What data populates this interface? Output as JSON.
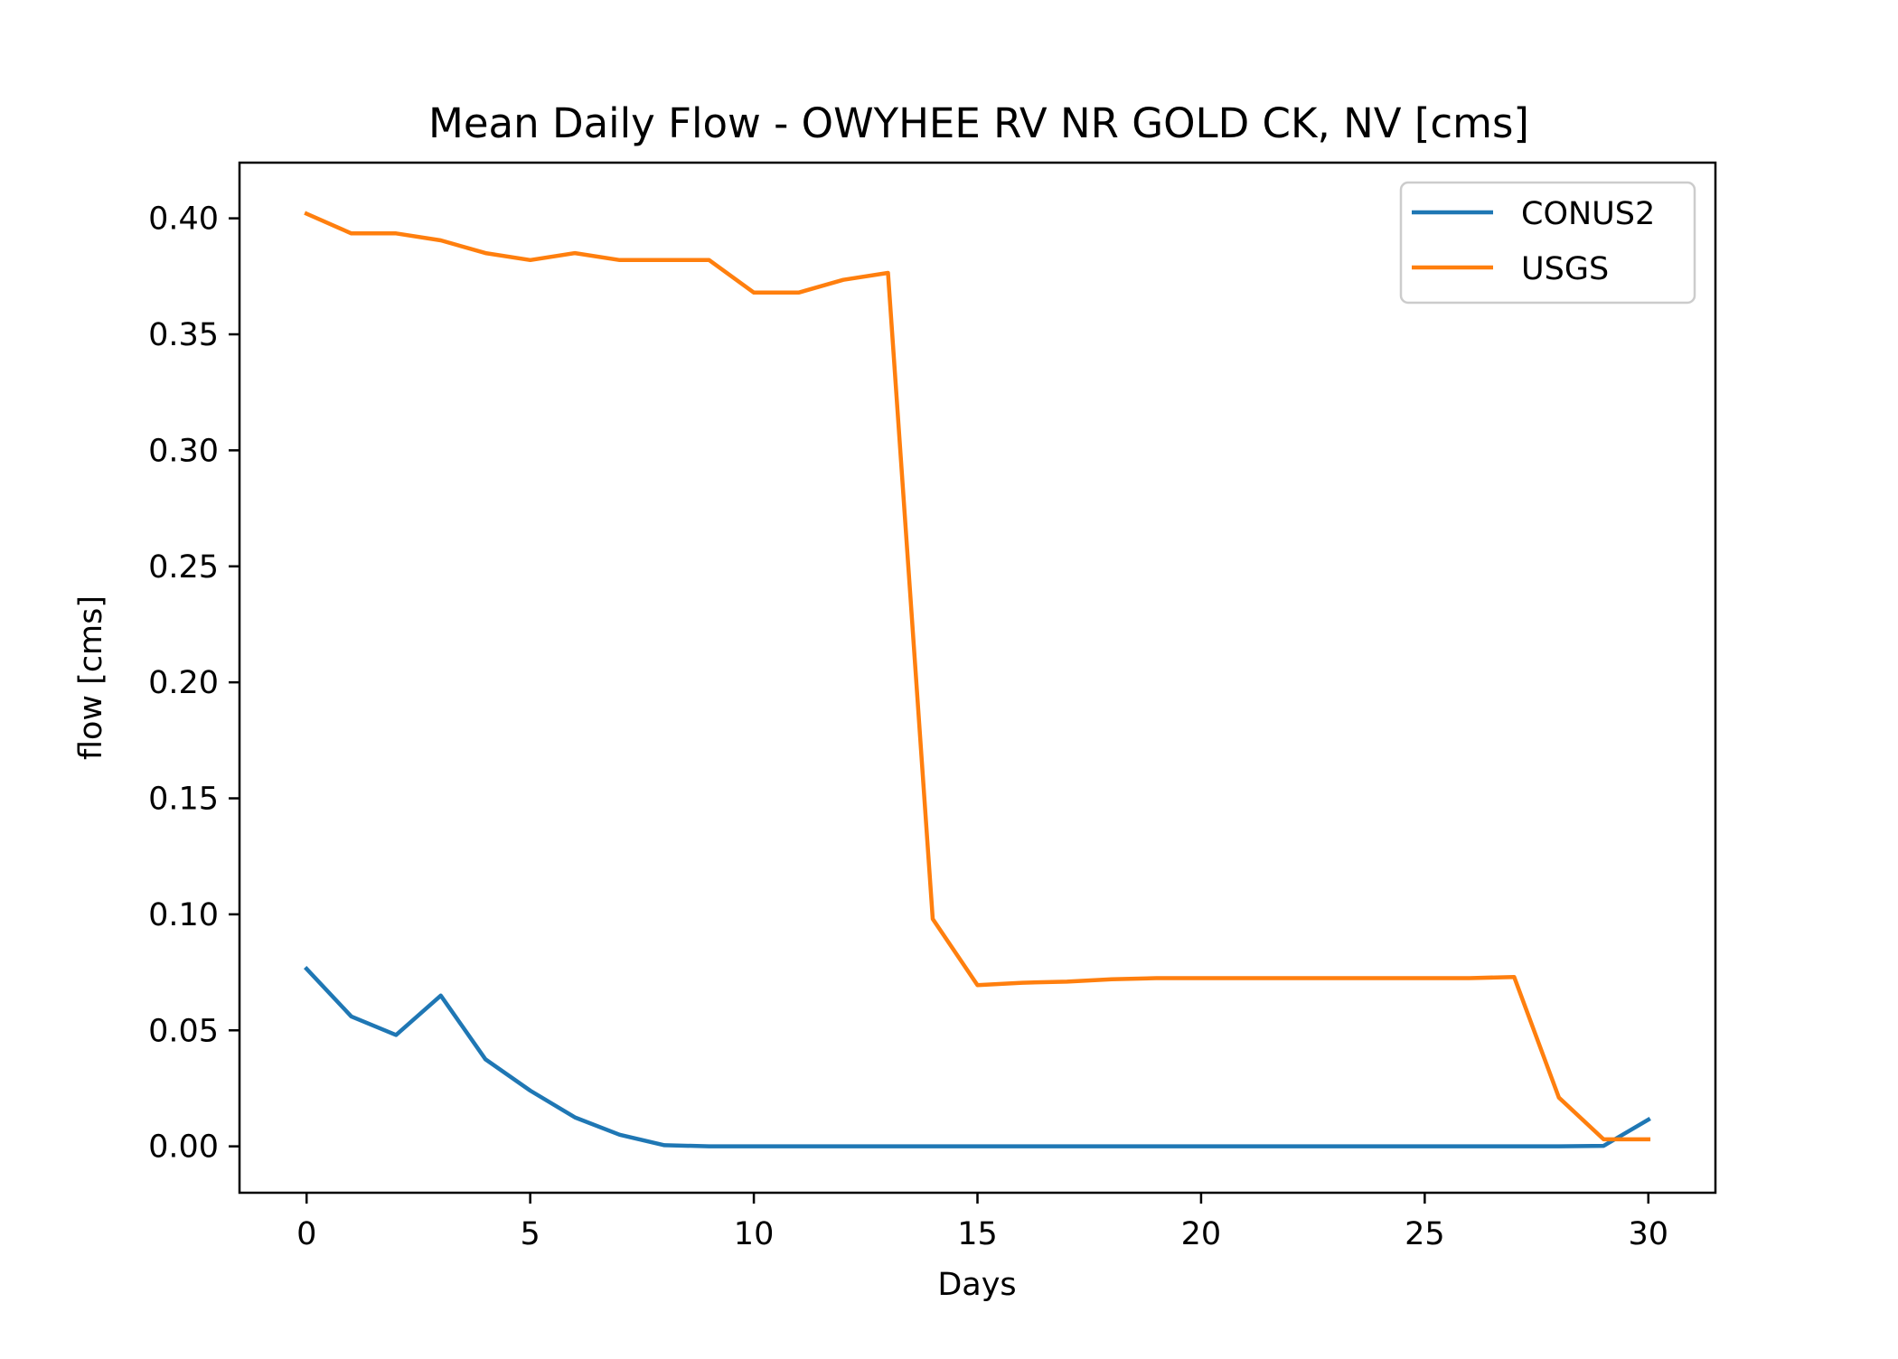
{
  "chart_data": {
    "type": "line",
    "title": "Mean Daily Flow - OWYHEE RV NR GOLD CK, NV [cms]",
    "xlabel": "Days",
    "ylabel": "flow [cms]",
    "xlim": [
      -1.5,
      31.5
    ],
    "ylim": [
      -0.02,
      0.424
    ],
    "xticks": [
      0,
      5,
      10,
      15,
      20,
      25,
      30
    ],
    "xtick_labels": [
      "0",
      "5",
      "10",
      "15",
      "20",
      "25",
      "30"
    ],
    "yticks": [
      0.0,
      0.05,
      0.1,
      0.15,
      0.2,
      0.25,
      0.3,
      0.35,
      0.4
    ],
    "ytick_labels": [
      "0.00",
      "0.05",
      "0.10",
      "0.15",
      "0.20",
      "0.25",
      "0.30",
      "0.35",
      "0.40"
    ],
    "grid": false,
    "legend_position": "upper right",
    "x": [
      0,
      1,
      2,
      3,
      4,
      5,
      6,
      7,
      8,
      9,
      10,
      11,
      12,
      13,
      14,
      15,
      16,
      17,
      18,
      19,
      20,
      21,
      22,
      23,
      24,
      25,
      26,
      27,
      28,
      29,
      30
    ],
    "series": [
      {
        "name": "CONUS2",
        "color": "#1f77b4",
        "values": [
          0.0765,
          0.056,
          0.048,
          0.065,
          0.0375,
          0.024,
          0.0125,
          0.005,
          0.0005,
          0.0,
          0.0,
          0.0,
          0.0,
          0.0,
          0.0,
          0.0,
          0.0,
          0.0,
          0.0,
          0.0,
          0.0,
          0.0,
          0.0,
          0.0,
          0.0,
          0.0,
          0.0,
          0.0,
          0.0,
          0.0002,
          0.0115
        ]
      },
      {
        "name": "USGS",
        "color": "#ff7f0e",
        "values": [
          0.402,
          0.3935,
          0.3935,
          0.3905,
          0.385,
          0.382,
          0.385,
          0.382,
          0.382,
          0.382,
          0.368,
          0.368,
          0.3735,
          0.3765,
          0.098,
          0.0695,
          0.0705,
          0.071,
          0.072,
          0.0725,
          0.0725,
          0.0725,
          0.0725,
          0.0725,
          0.0725,
          0.0725,
          0.0725,
          0.073,
          0.021,
          0.003,
          0.003
        ]
      }
    ]
  }
}
